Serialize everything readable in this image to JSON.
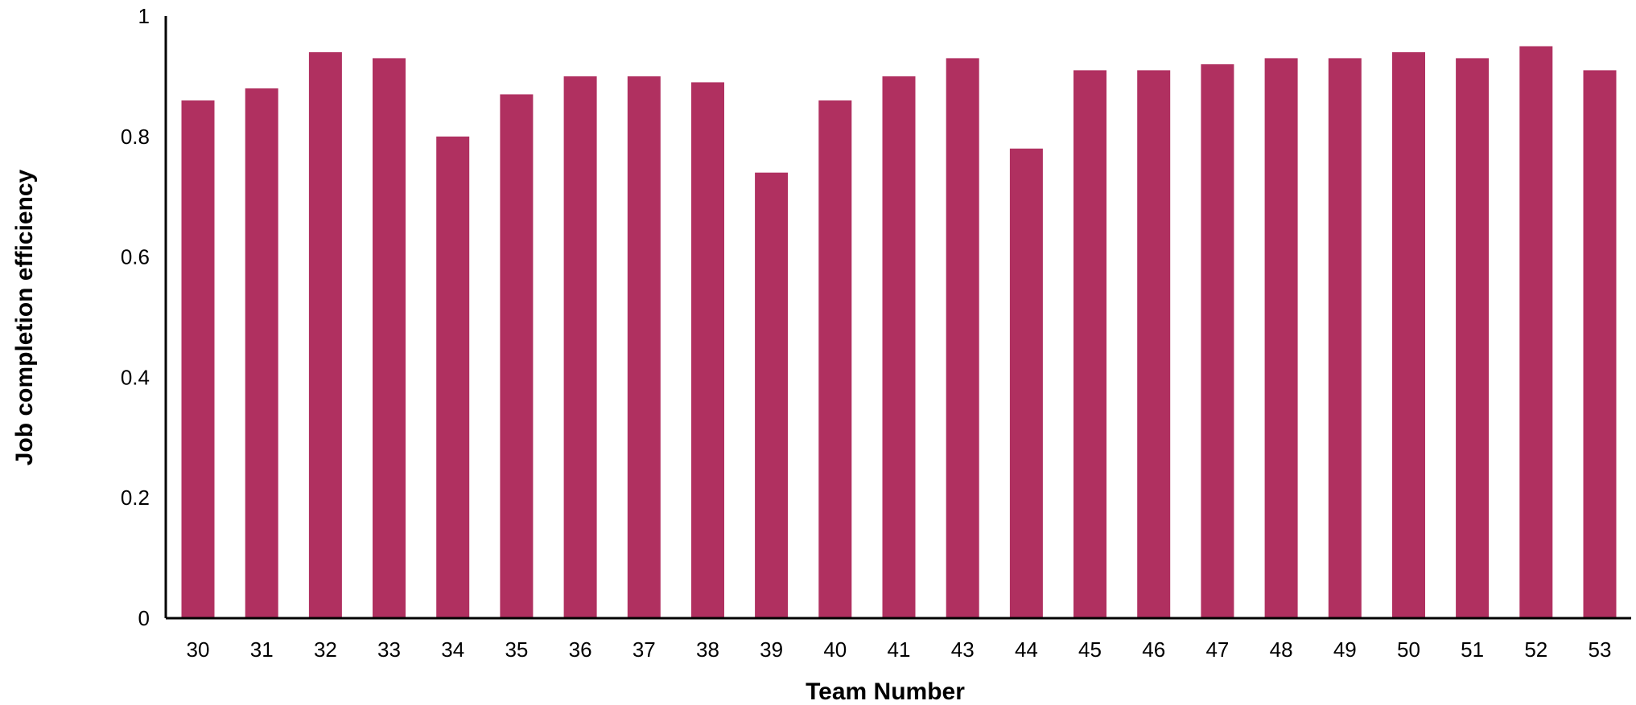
{
  "chart_data": {
    "type": "bar",
    "title": "",
    "xlabel": "Team Number",
    "ylabel": "Job completion efficiency",
    "categories": [
      "30",
      "31",
      "32",
      "33",
      "34",
      "35",
      "36",
      "37",
      "38",
      "39",
      "40",
      "41",
      "43",
      "44",
      "45",
      "46",
      "47",
      "48",
      "49",
      "50",
      "51",
      "52",
      "53"
    ],
    "values": [
      0.86,
      0.88,
      0.94,
      0.93,
      0.8,
      0.87,
      0.9,
      0.9,
      0.89,
      0.74,
      0.86,
      0.9,
      0.93,
      0.78,
      0.91,
      0.91,
      0.92,
      0.93,
      0.93,
      0.94,
      0.93,
      0.95,
      0.91
    ],
    "ylim": [
      0,
      1
    ],
    "yticks": [
      "0",
      "0.2",
      "0.4",
      "0.6",
      "0.8",
      "1"
    ],
    "grid": false,
    "legend": "none",
    "bar_color": "#b03060"
  }
}
